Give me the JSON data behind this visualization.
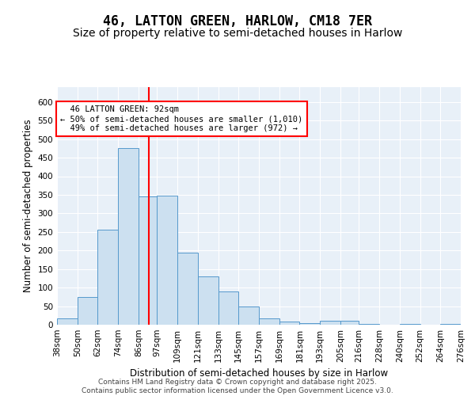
{
  "title": "46, LATTON GREEN, HARLOW, CM18 7ER",
  "subtitle": "Size of property relative to semi-detached houses in Harlow",
  "xlabel": "Distribution of semi-detached houses by size in Harlow",
  "ylabel": "Number of semi-detached properties",
  "footnote": "Contains HM Land Registry data © Crown copyright and database right 2025.\nContains public sector information licensed under the Open Government Licence v3.0.",
  "bin_edges": [
    38,
    50,
    62,
    74,
    86,
    97,
    109,
    121,
    133,
    145,
    157,
    169,
    181,
    193,
    205,
    216,
    228,
    240,
    252,
    264,
    276
  ],
  "bar_heights": [
    18,
    75,
    255,
    475,
    345,
    348,
    195,
    130,
    90,
    50,
    18,
    8,
    5,
    10,
    10,
    3,
    0,
    3,
    0,
    3
  ],
  "property_size": 92,
  "property_label": "46 LATTON GREEN: 92sqm",
  "smaller_text": "← 50% of semi-detached houses are smaller (1,010)",
  "larger_text": "49% of semi-detached houses are larger (972) →",
  "bar_color": "#cce0f0",
  "bar_edge_color": "#5599cc",
  "vline_color": "red",
  "bg_color": "#e8f0f8",
  "grid_color": "#ffffff",
  "ylim": [
    0,
    640
  ],
  "yticks": [
    0,
    50,
    100,
    150,
    200,
    250,
    300,
    350,
    400,
    450,
    500,
    550,
    600
  ],
  "title_fontsize": 12,
  "subtitle_fontsize": 10,
  "axis_label_fontsize": 8.5,
  "tick_fontsize": 7.5,
  "annot_fontsize": 7.5,
  "footnote_fontsize": 6.5
}
